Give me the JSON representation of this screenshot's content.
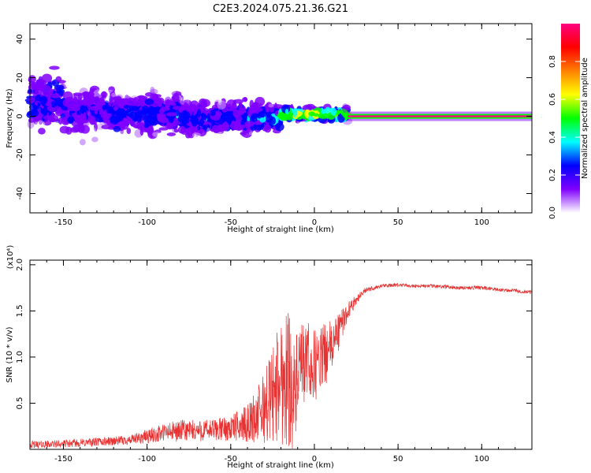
{
  "figure": {
    "title": "C2E3.2024.075.21.36.G21"
  },
  "colors": {
    "signal": "#e83232",
    "axis": "#000000",
    "background": "#ffffff"
  },
  "chart_data": [
    {
      "type": "heatmap",
      "xlabel": "Height of straight line (km)",
      "ylabel": "Frequency (Hz)",
      "xlim": [
        -170,
        130
      ],
      "ylim": [
        -50,
        48
      ],
      "x_ticks": [
        -150,
        -100,
        -50,
        0,
        50,
        100
      ],
      "x_tick_labels": [
        "-150",
        "-100",
        "-50",
        "0",
        "50",
        "100"
      ],
      "y_ticks": [
        -40,
        -20,
        0,
        20,
        40
      ],
      "y_tick_labels": [
        "-40",
        "-20",
        "0",
        "20",
        "40"
      ],
      "colorbar": {
        "label": "Normalized spectral amplitude",
        "range": [
          0,
          1
        ],
        "ticks": [
          0.0,
          0.2,
          0.4,
          0.6,
          0.8
        ],
        "tick_labels": [
          "0.0",
          "0.2",
          "0.4",
          "0.6",
          "0.8"
        ],
        "colors": [
          "#ffffff",
          "#8000ff",
          "#0000ff",
          "#00ffff",
          "#00ff00",
          "#ffff00",
          "#ff8000",
          "#ff0000",
          "#ff0080"
        ]
      },
      "clusters": [
        {
          "x": [
            -170,
            -150
          ],
          "center_hz": 8,
          "spread_hz": 10,
          "amplitude": 0.25
        },
        {
          "x": [
            -150,
            -120
          ],
          "center_hz": 3,
          "spread_hz": 8,
          "amplitude": 0.22
        },
        {
          "x": [
            -120,
            -80
          ],
          "center_hz": 1,
          "spread_hz": 7,
          "amplitude": 0.25
        },
        {
          "x": [
            -80,
            -40
          ],
          "center_hz": -1,
          "spread_hz": 6,
          "amplitude": 0.25
        },
        {
          "x": [
            -40,
            -20
          ],
          "center_hz": -1,
          "spread_hz": 5,
          "amplitude": 0.3
        },
        {
          "x": [
            -20,
            20
          ],
          "center_hz": 1,
          "spread_hz": 2,
          "amplitude": 0.6
        },
        {
          "x": [
            20,
            130
          ],
          "center_hz": 0,
          "spread_hz": 1,
          "amplitude": 0.95
        }
      ],
      "grid": false
    },
    {
      "type": "line",
      "xlabel": "Height of straight line (km)",
      "ylabel": "SNR (10 * v/v)",
      "y_multiplier": "(x10⁴)",
      "xlim": [
        -170,
        130
      ],
      "ylim": [
        0,
        2.05
      ],
      "x_ticks": [
        -150,
        -100,
        -50,
        0,
        50,
        100
      ],
      "x_tick_labels": [
        "-150",
        "-100",
        "-50",
        "0",
        "50",
        "100"
      ],
      "y_ticks": [
        0.5,
        1.0,
        1.5,
        2.0
      ],
      "y_tick_labels": [
        "0.5",
        "1.0",
        "1.5",
        "2.0"
      ],
      "series": [
        {
          "x": [
            -170,
            -150,
            -130,
            -110,
            -100,
            -90,
            -80,
            -70,
            -60,
            -50,
            -40,
            -35,
            -30,
            -25,
            -20,
            -15,
            -12,
            -10,
            -5,
            0,
            5,
            10,
            15,
            20,
            25,
            30,
            40,
            50,
            60,
            70,
            80,
            90,
            100,
            110,
            120,
            130
          ],
          "y": [
            0.05,
            0.06,
            0.08,
            0.1,
            0.14,
            0.18,
            0.2,
            0.2,
            0.21,
            0.23,
            0.28,
            0.35,
            0.45,
            0.6,
            0.75,
            0.8,
            0.55,
            0.8,
            0.95,
            0.9,
            1.0,
            1.1,
            1.3,
            1.5,
            1.62,
            1.72,
            1.77,
            1.78,
            1.77,
            1.77,
            1.76,
            1.75,
            1.75,
            1.73,
            1.72,
            1.7
          ],
          "noise": [
            0.04,
            0.04,
            0.05,
            0.05,
            0.08,
            0.1,
            0.12,
            0.12,
            0.12,
            0.14,
            0.2,
            0.3,
            0.4,
            0.55,
            0.7,
            0.8,
            0.6,
            0.5,
            0.45,
            0.4,
            0.35,
            0.3,
            0.2,
            0.1,
            0.05,
            0.03,
            0.02,
            0.02,
            0.02,
            0.02,
            0.02,
            0.02,
            0.02,
            0.02,
            0.02,
            0.02
          ]
        }
      ],
      "grid": false
    }
  ]
}
